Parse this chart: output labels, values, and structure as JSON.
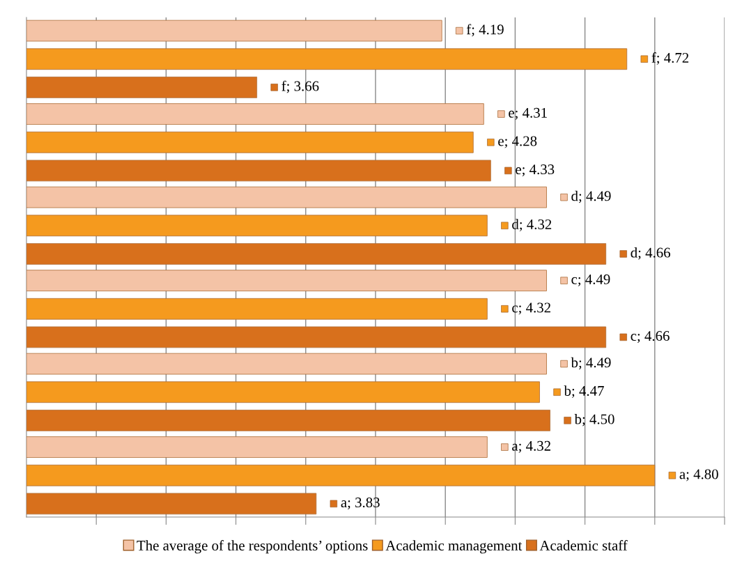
{
  "chart_data": {
    "type": "bar",
    "orientation": "horizontal",
    "categories": [
      null,
      null,
      null,
      null,
      null,
      null
    ],
    "series": [
      {
        "name": "The average of the respondents’ options",
        "color": "#f4c3a6",
        "values": [
          4.19,
          4.31,
          4.49,
          4.49,
          4.49,
          4.32
        ],
        "value_labels": [
          "f; 4.19",
          "e; 4.31",
          "d; 4.49",
          "c; 4.49",
          "b; 4.49",
          "a; 4.32"
        ]
      },
      {
        "name": "Academic management",
        "color": "#f59a1e",
        "values": [
          4.72,
          4.28,
          4.32,
          4.32,
          4.47,
          4.8
        ],
        "value_labels": [
          "f; 4.72",
          "e; 4.28",
          "d; 4.32",
          "c; 4.32",
          "b; 4.47",
          "a; 4.80"
        ]
      },
      {
        "name": "Academic staff",
        "color": "#d8701c",
        "values": [
          3.66,
          4.33,
          4.66,
          4.66,
          4.5,
          3.83
        ],
        "value_labels": [
          "f; 3.66",
          "e; 4.33",
          "d; 4.66",
          "c; 4.66",
          "b; 4.50",
          "a; 3.83"
        ]
      }
    ],
    "xlim": [
      3,
      5
    ],
    "xticks": [
      {
        "value": 3.2,
        "label": null
      },
      {
        "value": 3.4,
        "label": null
      },
      {
        "value": 3.6,
        "label": null
      },
      {
        "value": 3.8,
        "label": null
      },
      {
        "value": 4.0,
        "label": null
      },
      {
        "value": 4.2,
        "label": null
      },
      {
        "value": 4.4,
        "label": null
      },
      {
        "value": 4.6,
        "label": null
      },
      {
        "value": 4.8,
        "label": null
      },
      {
        "value": 5.0,
        "label": null
      }
    ],
    "grid": "x",
    "legend": "bottom"
  }
}
